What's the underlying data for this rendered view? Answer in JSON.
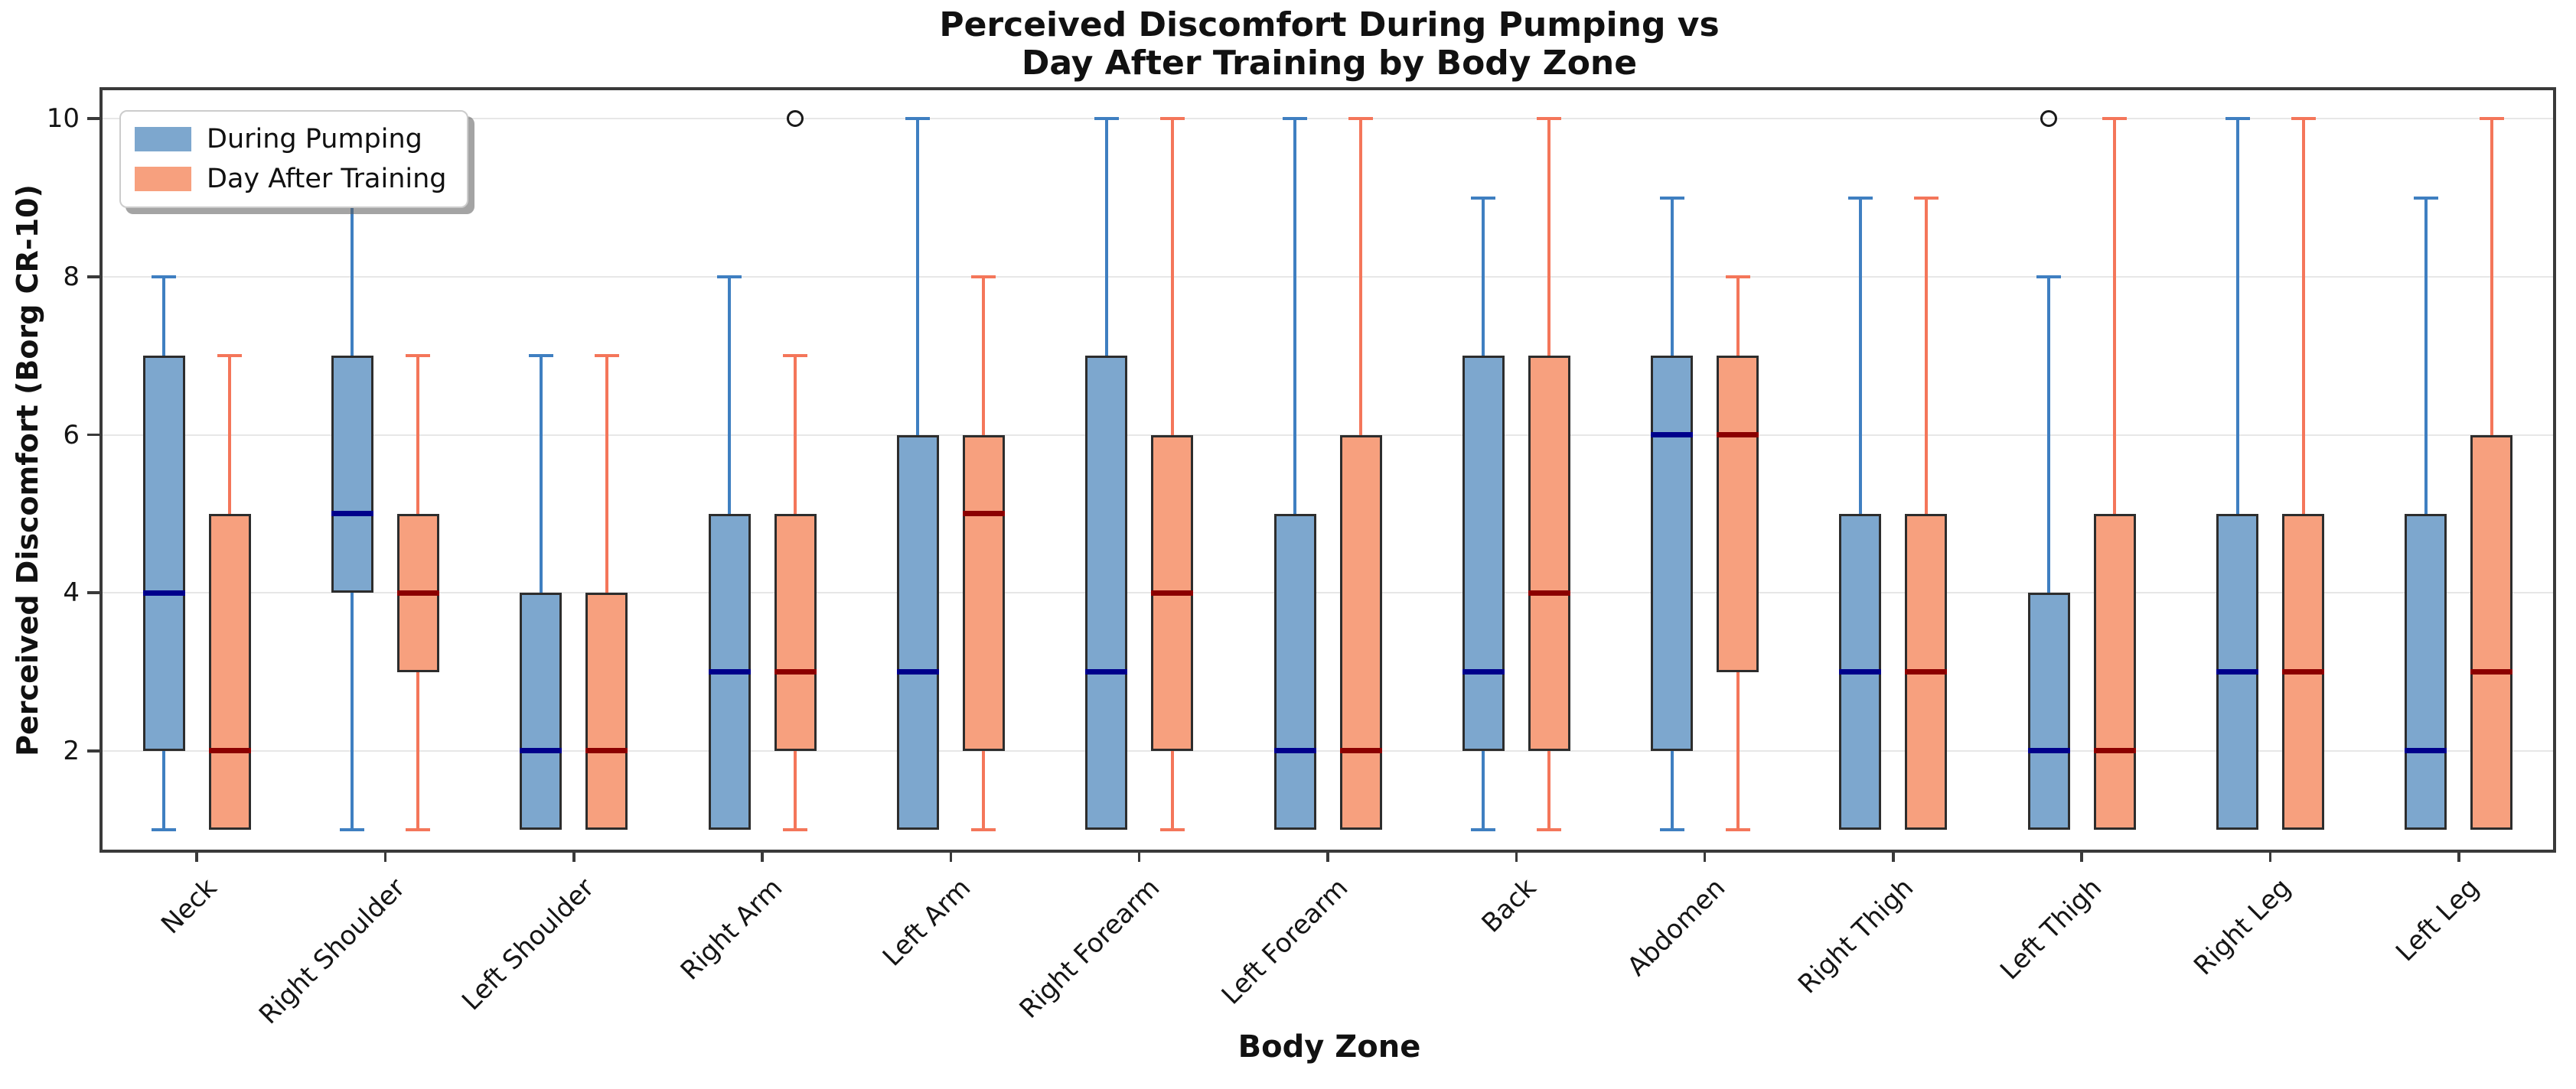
{
  "title": {
    "line1": "Perceived Discomfort During Pumping vs",
    "line2": "Day After Training by Body Zone"
  },
  "axes": {
    "xlabel": "Body Zone",
    "ylabel": "Perceived Discomfort (Borg CR-10)"
  },
  "legend": {
    "items": [
      {
        "label": "During Pumping",
        "color": "#7DA7CE"
      },
      {
        "label": "Day After Training",
        "color": "#F7A07E"
      }
    ]
  },
  "colors": {
    "background": "#FFFFFF",
    "spine": "#3A3A3A",
    "grid": "#E7E7E7",
    "box_edge": "#2D2D2D",
    "outlier_edge": "#1A1A1A"
  },
  "chart_data": {
    "type": "boxplot",
    "title": "Perceived Discomfort During Pumping vs Day After Training by Body Zone",
    "xlabel": "Body Zone",
    "ylabel": "Perceived Discomfort (Borg CR-10)",
    "ylim": [
      0.75,
      10.36
    ],
    "yticks": [
      2,
      4,
      6,
      8,
      10
    ],
    "grid": "horizontal",
    "legend_position": "upper-left",
    "categories": [
      "Neck",
      "Right Shoulder",
      "Left Shoulder",
      "Right Arm",
      "Left Arm",
      "Right Forearm",
      "Left Forearm",
      "Back",
      "Abdomen",
      "Right Thigh",
      "Left Thigh",
      "Right Leg",
      "Left Leg"
    ],
    "series": [
      {
        "name": "During Pumping",
        "fill": "#7DA7CE",
        "whisker_color": "#3F7FC1",
        "median_color": "#00008B",
        "boxes": [
          {
            "min": 1,
            "q1": 2,
            "median": 4,
            "q3": 7,
            "max": 8,
            "outliers": []
          },
          {
            "min": 1,
            "q1": 4,
            "median": 5,
            "q3": 7,
            "max": 9,
            "outliers": []
          },
          {
            "min": 1,
            "q1": 1,
            "median": 2,
            "q3": 4,
            "max": 7,
            "outliers": []
          },
          {
            "min": 1,
            "q1": 1,
            "median": 3,
            "q3": 5,
            "max": 8,
            "outliers": []
          },
          {
            "min": 1,
            "q1": 1,
            "median": 3,
            "q3": 6,
            "max": 10,
            "outliers": []
          },
          {
            "min": 1,
            "q1": 1,
            "median": 3,
            "q3": 7,
            "max": 10,
            "outliers": []
          },
          {
            "min": 1,
            "q1": 1,
            "median": 2,
            "q3": 5,
            "max": 10,
            "outliers": []
          },
          {
            "min": 1,
            "q1": 2,
            "median": 3,
            "q3": 7,
            "max": 9,
            "outliers": []
          },
          {
            "min": 1,
            "q1": 2,
            "median": 6,
            "q3": 7,
            "max": 9,
            "outliers": []
          },
          {
            "min": 1,
            "q1": 1,
            "median": 3,
            "q3": 5,
            "max": 9,
            "outliers": []
          },
          {
            "min": 1,
            "q1": 1,
            "median": 2,
            "q3": 4,
            "max": 8,
            "outliers": [
              10
            ]
          },
          {
            "min": 1,
            "q1": 1,
            "median": 3,
            "q3": 5,
            "max": 10,
            "outliers": []
          },
          {
            "min": 1,
            "q1": 1,
            "median": 2,
            "q3": 5,
            "max": 9,
            "outliers": []
          }
        ]
      },
      {
        "name": "Day After Training",
        "fill": "#F7A07E",
        "whisker_color": "#F4765A",
        "median_color": "#8B0000",
        "boxes": [
          {
            "min": 1,
            "q1": 1,
            "median": 2,
            "q3": 5,
            "max": 7,
            "outliers": []
          },
          {
            "min": 1,
            "q1": 3,
            "median": 4,
            "q3": 5,
            "max": 7,
            "outliers": []
          },
          {
            "min": 1,
            "q1": 1,
            "median": 2,
            "q3": 4,
            "max": 7,
            "outliers": []
          },
          {
            "min": 1,
            "q1": 2,
            "median": 3,
            "q3": 5,
            "max": 7,
            "outliers": [
              10
            ]
          },
          {
            "min": 1,
            "q1": 2,
            "median": 5,
            "q3": 6,
            "max": 8,
            "outliers": []
          },
          {
            "min": 1,
            "q1": 2,
            "median": 4,
            "q3": 6,
            "max": 10,
            "outliers": []
          },
          {
            "min": 1,
            "q1": 1,
            "median": 2,
            "q3": 6,
            "max": 10,
            "outliers": []
          },
          {
            "min": 1,
            "q1": 2,
            "median": 4,
            "q3": 7,
            "max": 10,
            "outliers": []
          },
          {
            "min": 1,
            "q1": 3,
            "median": 6,
            "q3": 7,
            "max": 8,
            "outliers": []
          },
          {
            "min": 1,
            "q1": 1,
            "median": 3,
            "q3": 5,
            "max": 9,
            "outliers": []
          },
          {
            "min": 1,
            "q1": 1,
            "median": 2,
            "q3": 5,
            "max": 10,
            "outliers": []
          },
          {
            "min": 1,
            "q1": 1,
            "median": 3,
            "q3": 5,
            "max": 10,
            "outliers": []
          },
          {
            "min": 1,
            "q1": 1,
            "median": 3,
            "q3": 6,
            "max": 10,
            "outliers": []
          }
        ]
      }
    ]
  }
}
